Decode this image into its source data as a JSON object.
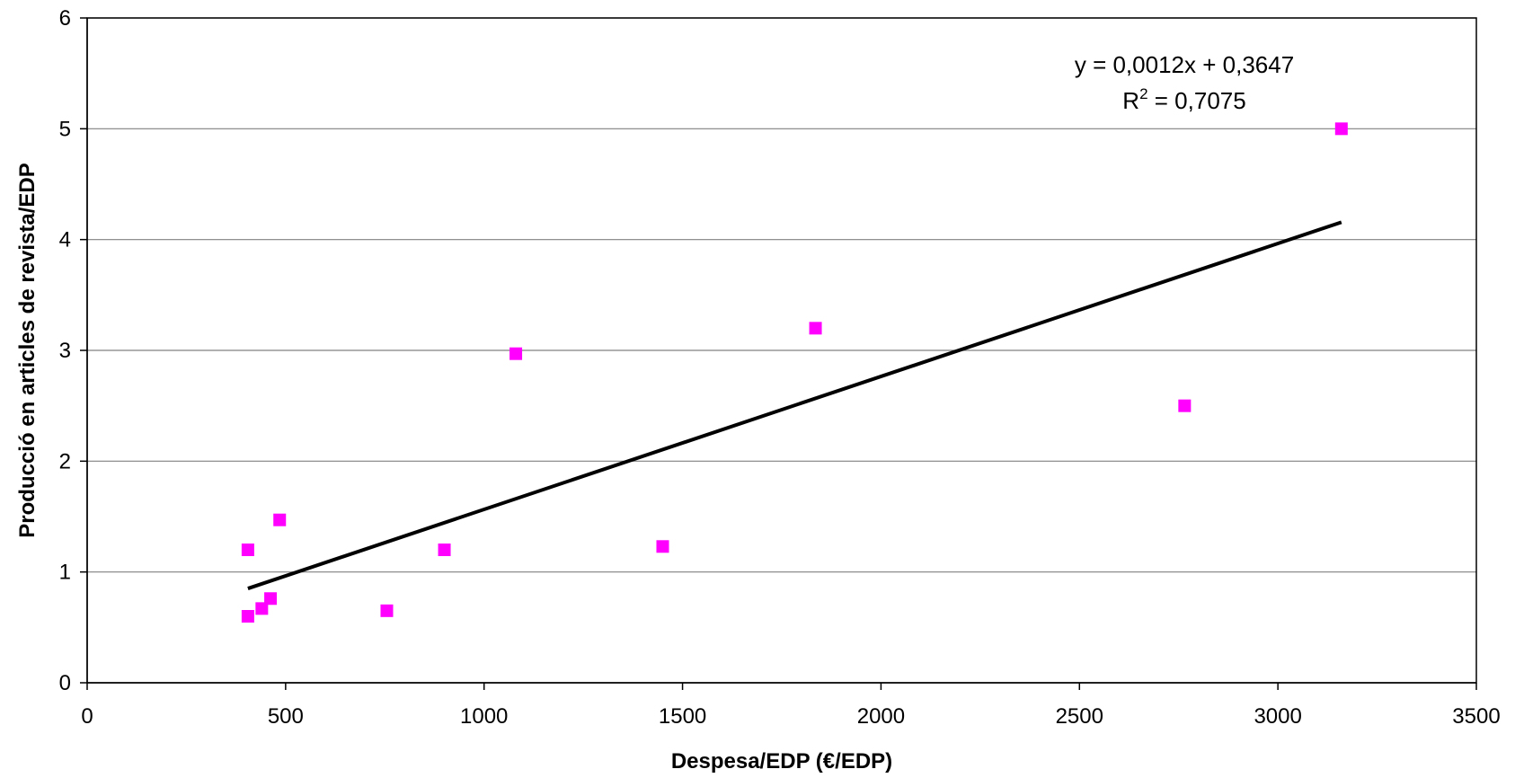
{
  "chart_data": {
    "type": "scatter",
    "title": "",
    "xlabel": "Despesa/EDP (€/EDP)",
    "ylabel": "Producció en articles de revista/EDP",
    "xlim": [
      0,
      3500
    ],
    "ylim": [
      0,
      6
    ],
    "x_ticks": [
      0,
      500,
      1000,
      1500,
      2000,
      2500,
      3000,
      3500
    ],
    "y_ticks": [
      0,
      1,
      2,
      3,
      4,
      5,
      6
    ],
    "grid": "horizontal",
    "legend": "none",
    "series": [
      {
        "marker": "square",
        "color": "#ff00ff",
        "points": [
          {
            "x": 405,
            "y": 0.6
          },
          {
            "x": 405,
            "y": 1.2
          },
          {
            "x": 440,
            "y": 0.67
          },
          {
            "x": 462,
            "y": 0.76
          },
          {
            "x": 485,
            "y": 1.47
          },
          {
            "x": 755,
            "y": 0.65
          },
          {
            "x": 900,
            "y": 1.2
          },
          {
            "x": 1080,
            "y": 2.97
          },
          {
            "x": 1450,
            "y": 1.23
          },
          {
            "x": 1835,
            "y": 3.2
          },
          {
            "x": 2765,
            "y": 2.5
          },
          {
            "x": 3160,
            "y": 5.0
          }
        ]
      }
    ],
    "trendline": {
      "type": "linear",
      "slope": 0.0012,
      "intercept": 0.3647,
      "x_range": [
        405,
        3160
      ],
      "color": "#000000",
      "equation_label": "y = 0,0012x + 0,3647",
      "r2_label_prefix": "R",
      "r2_label_sup": "2",
      "r2_label_value": " = 0,7075"
    }
  }
}
